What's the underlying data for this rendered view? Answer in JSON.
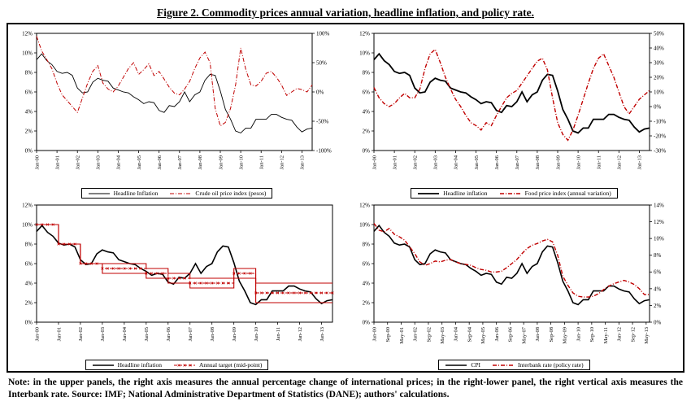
{
  "title": "Figure 2. Commodity prices annual variation, headline inflation, and policy rate.",
  "note": "Note: in the upper panels, the right axis measures the annual percentage change of international prices; in the right-lower panel, the right vertical axis measures the Interbank rate. Source: IMF; National Administrative Department of Statistics (DANE); authors' calculations.",
  "colors": {
    "line_black": "#000000",
    "line_red": "#c00000"
  },
  "chart_data": [
    {
      "type": "line",
      "name": "headline-inflation-vs-crude-oil",
      "left_axis": [
        0,
        12
      ],
      "right_axis": [
        -100,
        100
      ],
      "left_ticks": [
        [
          0,
          "0%"
        ],
        [
          2,
          "2%"
        ],
        [
          4,
          "4%"
        ],
        [
          6,
          "6%"
        ],
        [
          8,
          "8%"
        ],
        [
          10,
          "10%"
        ],
        [
          12,
          "12%"
        ]
      ],
      "right_ticks": [
        [
          -100,
          "-100%"
        ],
        [
          -50,
          "-50%"
        ],
        [
          0,
          "0%"
        ],
        [
          50,
          "50%"
        ],
        [
          100,
          "100%"
        ]
      ],
      "x_ticks": [
        "Jan-00",
        "Jan-01",
        "Jan-02",
        "Jan-03",
        "Jan-04",
        "Jan-05",
        "Jan-06",
        "Jan-07",
        "Jan-08",
        "Jan-09",
        "Jan-10",
        "Jan-11",
        "Jan-12",
        "Jan-13"
      ],
      "x_tick_spacing": 0.074074,
      "series": [
        {
          "name": "Headline Inflation",
          "legend": "Headline Inflation",
          "axis": "left",
          "color": "#000000",
          "width": 0.9,
          "values": [
            9.3,
            9.9,
            9.2,
            8.8,
            8.1,
            7.9,
            8.0,
            7.7,
            6.4,
            5.9,
            6.0,
            7.0,
            7.4,
            7.2,
            7.1,
            6.4,
            6.2,
            6.0,
            5.9,
            5.5,
            5.2,
            4.8,
            5.0,
            4.9,
            4.1,
            3.9,
            4.6,
            4.5,
            5.0,
            6.0,
            5.0,
            5.7,
            6.0,
            7.2,
            7.8,
            7.7,
            6.1,
            4.2,
            3.2,
            2.0,
            1.8,
            2.3,
            2.3,
            3.2,
            3.2,
            3.2,
            3.7,
            3.7,
            3.4,
            3.2,
            3.1,
            2.4,
            1.9,
            2.2,
            2.3
          ]
        },
        {
          "name": "Crude oil price index (pesos)",
          "legend": "Crude oil price index (pesos)",
          "axis": "right",
          "color": "#c00000",
          "width": 1,
          "dash": "5,2,1,2",
          "values": [
            95,
            70,
            55,
            40,
            15,
            -5,
            -15,
            -25,
            -35,
            -10,
            15,
            35,
            45,
            15,
            5,
            0,
            10,
            25,
            40,
            50,
            30,
            38,
            48,
            28,
            35,
            22,
            8,
            -2,
            -5,
            5,
            18,
            40,
            58,
            68,
            50,
            -28,
            -58,
            -52,
            -28,
            12,
            75,
            38,
            12,
            10,
            18,
            32,
            35,
            25,
            12,
            -6,
            0,
            6,
            4,
            0,
            12
          ]
        }
      ]
    },
    {
      "type": "line",
      "name": "headline-inflation-vs-food-price",
      "left_axis": [
        0,
        12
      ],
      "right_axis": [
        -30,
        50
      ],
      "left_ticks": [
        [
          0,
          "0%"
        ],
        [
          2,
          "2%"
        ],
        [
          4,
          "4%"
        ],
        [
          6,
          "6%"
        ],
        [
          8,
          "8%"
        ],
        [
          10,
          "10%"
        ],
        [
          12,
          "12%"
        ]
      ],
      "right_ticks": [
        [
          -30,
          "-30%"
        ],
        [
          -20,
          "-20%"
        ],
        [
          -10,
          "-10%"
        ],
        [
          0,
          "0%"
        ],
        [
          10,
          "10%"
        ],
        [
          20,
          "20%"
        ],
        [
          30,
          "30%"
        ],
        [
          40,
          "40%"
        ],
        [
          50,
          "50%"
        ]
      ],
      "x_ticks": [
        "Jan-00",
        "Jan-01",
        "Jan-02",
        "Jan-03",
        "Jan-04",
        "Jan-05",
        "Jan-06",
        "Jan-07",
        "Jan-08",
        "Jan-09",
        "Jan-10",
        "Jan-11",
        "Jan-12",
        "Jan-13"
      ],
      "x_tick_spacing": 0.074074,
      "series": [
        {
          "name": "Headline inflation",
          "legend": "Headline inflation",
          "axis": "left",
          "color": "#000000",
          "width": 1.8,
          "values": [
            9.3,
            9.9,
            9.2,
            8.8,
            8.1,
            7.9,
            8.0,
            7.7,
            6.4,
            5.9,
            6.0,
            7.0,
            7.4,
            7.2,
            7.1,
            6.4,
            6.2,
            6.0,
            5.9,
            5.5,
            5.2,
            4.8,
            5.0,
            4.9,
            4.1,
            3.9,
            4.6,
            4.5,
            5.0,
            6.0,
            5.0,
            5.7,
            6.0,
            7.2,
            7.8,
            7.7,
            6.1,
            4.2,
            3.2,
            2.0,
            1.8,
            2.3,
            2.3,
            3.2,
            3.2,
            3.2,
            3.7,
            3.7,
            3.4,
            3.2,
            3.1,
            2.4,
            1.9,
            2.2,
            2.3
          ]
        },
        {
          "name": "Food price index (annual variation)",
          "legend": "Food price index (annual variation)",
          "axis": "right",
          "color": "#c00000",
          "width": 1.4,
          "dash": "5,2,1,2",
          "values": [
            13,
            6,
            2,
            0,
            2,
            6,
            9,
            6,
            6,
            12,
            26,
            36,
            39,
            30,
            20,
            12,
            5,
            0,
            -6,
            -11,
            -13,
            -16,
            -11,
            -13,
            -6,
            0,
            6,
            9,
            11,
            16,
            21,
            26,
            31,
            33,
            25,
            6,
            -11,
            -19,
            -23,
            -16,
            -6,
            5,
            16,
            26,
            33,
            36,
            28,
            20,
            10,
            0,
            -5,
            0,
            5,
            8,
            11
          ]
        }
      ]
    },
    {
      "type": "line",
      "name": "headline-inflation-vs-annual-target",
      "left_axis": [
        0,
        12
      ],
      "left_ticks": [
        [
          0,
          "0%"
        ],
        [
          2,
          "2%"
        ],
        [
          4,
          "4%"
        ],
        [
          6,
          "6%"
        ],
        [
          8,
          "8%"
        ],
        [
          10,
          "10%"
        ],
        [
          12,
          "12%"
        ]
      ],
      "x_ticks": [
        "Jan-00",
        "Jan-01",
        "Jan-02",
        "Jan-03",
        "Jan-04",
        "Jan-05",
        "Jan-06",
        "Jan-07",
        "Jan-08",
        "Jan-09",
        "Jan-10",
        "Jan-11",
        "Jan-12",
        "Jan-13"
      ],
      "x_tick_spacing": 0.074074,
      "series": [
        {
          "name": "Headline inflation",
          "legend": "Headline inflation",
          "axis": "left",
          "color": "#000000",
          "width": 1.6,
          "values": [
            9.3,
            9.9,
            9.2,
            8.8,
            8.1,
            7.9,
            8.0,
            7.7,
            6.4,
            5.9,
            6.0,
            7.0,
            7.4,
            7.2,
            7.1,
            6.4,
            6.2,
            6.0,
            5.9,
            5.5,
            5.2,
            4.8,
            5.0,
            4.9,
            4.1,
            3.9,
            4.6,
            4.5,
            5.0,
            6.0,
            5.0,
            5.7,
            6.0,
            7.2,
            7.8,
            7.7,
            6.1,
            4.2,
            3.2,
            2.0,
            1.8,
            2.3,
            2.3,
            3.2,
            3.2,
            3.2,
            3.7,
            3.7,
            3.4,
            3.2,
            3.1,
            2.4,
            1.9,
            2.2,
            2.3
          ]
        },
        {
          "name": "Target upper bound",
          "axis": "left",
          "color": "#c00000",
          "width": 1.1,
          "step": true,
          "values": [
            10,
            10,
            10,
            10,
            8,
            8,
            8,
            8,
            6,
            6,
            6,
            6,
            6,
            6,
            6,
            6,
            6,
            6,
            6,
            6,
            5.5,
            5.5,
            5.5,
            5.5,
            5,
            5,
            5,
            5,
            4.5,
            4.5,
            4.5,
            4.5,
            4.5,
            4.5,
            4.5,
            4.5,
            5.5,
            5.5,
            5.5,
            5.5,
            4,
            4,
            4,
            4,
            4,
            4,
            4,
            4,
            4,
            4,
            4,
            4,
            4,
            4,
            4
          ]
        },
        {
          "name": "Target lower bound",
          "axis": "left",
          "color": "#c00000",
          "width": 1.1,
          "step": true,
          "values": [
            10,
            10,
            10,
            10,
            8,
            8,
            8,
            8,
            6,
            6,
            6,
            6,
            5,
            5,
            5,
            5,
            5,
            5,
            5,
            5,
            4.5,
            4.5,
            4.5,
            4.5,
            4,
            4,
            4,
            4,
            3.5,
            3.5,
            3.5,
            3.5,
            3.5,
            3.5,
            3.5,
            3.5,
            4.5,
            4.5,
            4.5,
            4.5,
            2,
            2,
            2,
            2,
            2,
            2,
            2,
            2,
            2,
            2,
            2,
            2,
            2,
            2,
            2
          ]
        },
        {
          "name": "Annual target (mid-point)",
          "legend": "Annual target (mid-point)",
          "axis": "left",
          "color": "#c00000",
          "width": 0.9,
          "dash": "4,2",
          "step": true,
          "markers": true,
          "values": [
            10,
            10,
            10,
            10,
            8,
            8,
            8,
            8,
            6,
            6,
            6,
            6,
            5.5,
            5.5,
            5.5,
            5.5,
            5.5,
            5.5,
            5.5,
            5.5,
            5,
            5,
            5,
            5,
            4.5,
            4.5,
            4.5,
            4.5,
            4,
            4,
            4,
            4,
            4,
            4,
            4,
            4,
            5,
            5,
            5,
            5,
            3,
            3,
            3,
            3,
            3,
            3,
            3,
            3,
            3,
            3,
            3,
            3,
            3,
            3,
            3
          ]
        }
      ]
    },
    {
      "type": "line",
      "name": "cpi-vs-interbank-rate",
      "left_axis": [
        0,
        12
      ],
      "right_axis": [
        0,
        14
      ],
      "left_ticks": [
        [
          0,
          "0%"
        ],
        [
          2,
          "2%"
        ],
        [
          4,
          "4%"
        ],
        [
          6,
          "6%"
        ],
        [
          8,
          "8%"
        ],
        [
          10,
          "10%"
        ],
        [
          12,
          "12%"
        ]
      ],
      "right_ticks": [
        [
          0,
          "0%"
        ],
        [
          2,
          "2%"
        ],
        [
          4,
          "4%"
        ],
        [
          6,
          "6%"
        ],
        [
          8,
          "8%"
        ],
        [
          10,
          "10%"
        ],
        [
          12,
          "12%"
        ],
        [
          14,
          "14%"
        ]
      ],
      "x_ticks": [
        "Jan-00",
        "Sep-00",
        "May-01",
        "Jan-02",
        "Sep-02",
        "May-03",
        "Jan-04",
        "Sep-04",
        "May-05",
        "Jan-06",
        "Sep-06",
        "May-07",
        "Jan-08",
        "Sep-08",
        "May-09",
        "Jan-10",
        "Sep-10",
        "May-11",
        "Jan-12",
        "Sep-12",
        "May-13"
      ],
      "x_tick_spacing": 0.049383,
      "series": [
        {
          "name": "CPI",
          "legend": "CPI",
          "axis": "left",
          "color": "#000000",
          "width": 1.6,
          "values": [
            9.3,
            9.9,
            9.2,
            8.8,
            8.1,
            7.9,
            8.0,
            7.7,
            6.4,
            5.9,
            6.0,
            7.0,
            7.4,
            7.2,
            7.1,
            6.4,
            6.2,
            6.0,
            5.9,
            5.5,
            5.2,
            4.8,
            5.0,
            4.9,
            4.1,
            3.9,
            4.6,
            4.5,
            5.0,
            6.0,
            5.0,
            5.7,
            6.0,
            7.2,
            7.8,
            7.7,
            6.1,
            4.2,
            3.2,
            2.0,
            1.8,
            2.3,
            2.3,
            3.2,
            3.2,
            3.2,
            3.7,
            3.7,
            3.4,
            3.2,
            3.1,
            2.4,
            1.9,
            2.2,
            2.3
          ]
        },
        {
          "name": "Interbank rate (policy rate)",
          "legend": "Interbank rate (policy rate)",
          "axis": "right",
          "color": "#c00000",
          "width": 1.4,
          "dash": "5,2,1,2",
          "values": [
            11.8,
            11.0,
            10.8,
            11.2,
            10.5,
            10.2,
            9.8,
            9.0,
            8.2,
            7.2,
            6.8,
            7.0,
            7.3,
            7.2,
            7.4,
            7.5,
            7.2,
            7.0,
            6.9,
            6.8,
            6.5,
            6.3,
            6.2,
            6.0,
            6.0,
            6.1,
            6.5,
            7.0,
            7.5,
            8.2,
            8.8,
            9.2,
            9.4,
            9.7,
            9.9,
            9.6,
            8.0,
            5.5,
            4.4,
            3.5,
            3.1,
            3.0,
            3.0,
            3.1,
            3.4,
            3.9,
            4.3,
            4.6,
            4.8,
            5.0,
            4.8,
            4.5,
            4.0,
            3.3,
            3.3
          ]
        }
      ]
    }
  ]
}
